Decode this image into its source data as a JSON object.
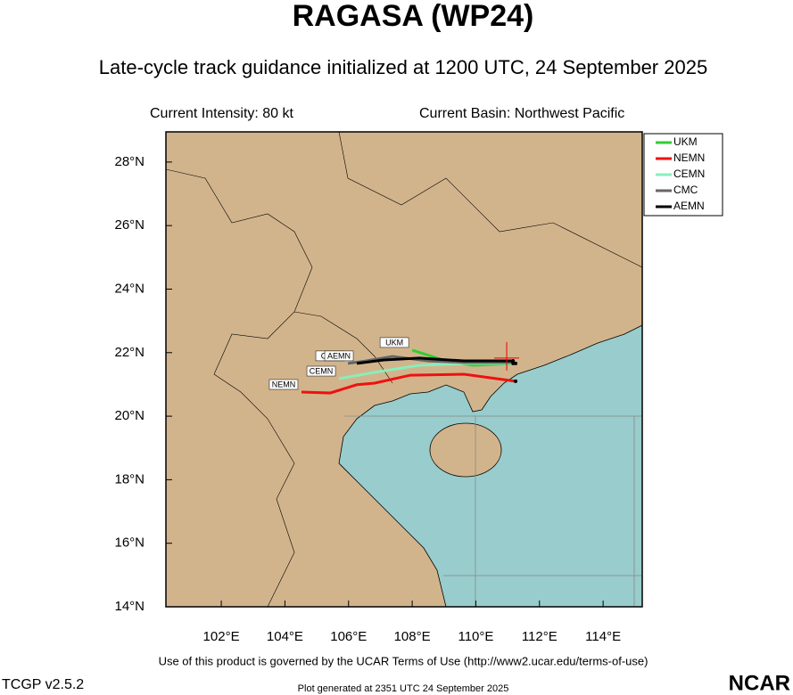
{
  "chart_data": {
    "type": "track",
    "title": "RAGASA (WP24)",
    "subtitle": "Late-cycle track guidance initialized at 1200 UTC, 24 September 2025",
    "intensity": "Current Intensity: 80 kt",
    "basin": "Current Basin: Northwest Pacific",
    "xlim": [
      100.26,
      115.23
    ],
    "ylim": [
      14,
      28.95
    ],
    "xticks": [
      {
        "value": 102,
        "label": "102°E"
      },
      {
        "value": 104,
        "label": "104°E"
      },
      {
        "value": 106,
        "label": "106°E"
      },
      {
        "value": 108,
        "label": "108°E"
      },
      {
        "value": 110,
        "label": "110°E"
      },
      {
        "value": 112,
        "label": "112°E"
      },
      {
        "value": 114,
        "label": "114°E"
      }
    ],
    "yticks": [
      {
        "value": 14,
        "label": "14°N"
      },
      {
        "value": 16,
        "label": "16°N"
      },
      {
        "value": 18,
        "label": "18°N"
      },
      {
        "value": 20,
        "label": "20°N"
      },
      {
        "value": 22,
        "label": "22°N"
      },
      {
        "value": 24,
        "label": "24°N"
      },
      {
        "value": 26,
        "label": "26°N"
      },
      {
        "value": 28,
        "label": "28°N"
      }
    ],
    "current_position": {
      "x": 110.97,
      "y": 21.83
    },
    "series": [
      {
        "name": "UKM",
        "color": "#33cc33",
        "x": [
          111.25,
          109.91,
          109.06,
          108.0
        ],
        "values": [
          21.66,
          21.6,
          21.74,
          22.08
        ]
      },
      {
        "name": "NEMN",
        "color": "#ee1111",
        "x": [
          111.25,
          109.63,
          107.94,
          106.82,
          106.26,
          105.42,
          104.52
        ],
        "values": [
          21.1,
          21.32,
          21.29,
          21.04,
          20.99,
          20.73,
          20.76
        ]
      },
      {
        "name": "CEMN",
        "color": "#88eebb",
        "x": [
          111.17,
          109.63,
          108.22,
          106.82,
          105.7
        ],
        "values": [
          21.66,
          21.66,
          21.6,
          21.38,
          21.18
        ]
      },
      {
        "name": "CMC",
        "color": "#666666",
        "x": [
          111.17,
          109.63,
          108.5,
          107.38,
          106.54,
          105.98
        ],
        "values": [
          21.69,
          21.69,
          21.74,
          21.88,
          21.74,
          21.66
        ]
      },
      {
        "name": "AEMN",
        "color": "#000000",
        "x": [
          111.17,
          109.63,
          108.22,
          107.1,
          106.26
        ],
        "values": [
          21.74,
          21.74,
          21.83,
          21.77,
          21.66
        ]
      }
    ],
    "terms": "Use of this product is governed by the UCAR Terms of Use (http://www2.ucar.edu/terms-of-use)",
    "version": "TCGP v2.5.2",
    "generated": "Plot generated at 2351 UTC   24 September 2025",
    "logo": "NCAR"
  }
}
